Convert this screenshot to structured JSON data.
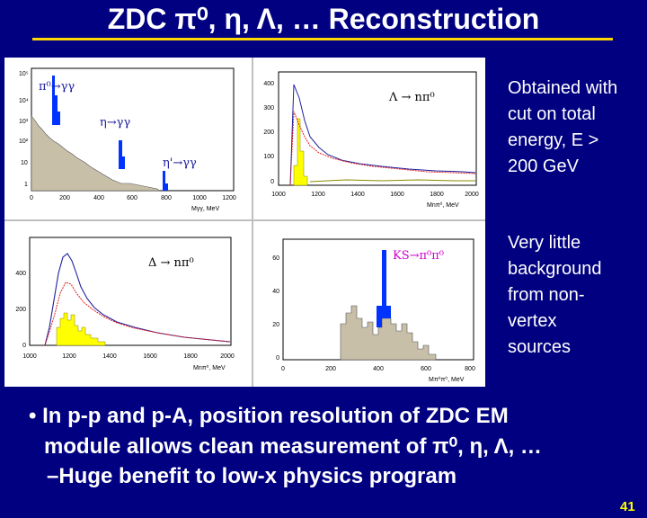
{
  "title": "ZDC π⁰, η, Λ, … Reconstruction",
  "page_number": "41",
  "side_notes": [
    [
      "Obtained with",
      "cut on total",
      "energy, E >",
      "200 GeV"
    ],
    [
      "Very little",
      "background",
      "from non-",
      "vertex",
      "sources"
    ]
  ],
  "bullet": {
    "marker": "•",
    "line1": "In p-p and p-A, position resolution of ZDC EM",
    "line2": "module allows clean measurement of π⁰, η, Λ, …"
  },
  "sub_bullet": "–Huge benefit to low-x physics program",
  "plots": {
    "gg": {
      "xlabel": "Mγγ, MeV",
      "xticks": [
        "0",
        "200",
        "400",
        "600",
        "800",
        "1000",
        "1200"
      ],
      "yticks": [
        "10⁵",
        "10⁴",
        "10³",
        "10²",
        "10",
        "1"
      ],
      "labels": [
        "π⁰→γγ",
        "η→γγ",
        "η'→γγ"
      ]
    },
    "lambda": {
      "xlabel": "Mnπ⁰, MeV",
      "xticks": [
        "1000",
        "1200",
        "1400",
        "1600",
        "1800",
        "2000"
      ],
      "yticks": [
        "400",
        "300",
        "200",
        "100",
        "0"
      ],
      "label": "Λ → nπ⁰"
    },
    "delta": {
      "xlabel": "Mnπ⁰, MeV",
      "xticks": [
        "1000",
        "1200",
        "1400",
        "1600",
        "1800",
        "2000"
      ],
      "yticks": [
        "400",
        "200",
        "0"
      ],
      "label": "Δ → nπ⁰"
    },
    "ks": {
      "xlabel": "Mπ⁰π⁰, MeV",
      "xticks": [
        "0",
        "200",
        "400",
        "600",
        "800"
      ],
      "yticks": [
        "60",
        "40",
        "20",
        "0"
      ],
      "label": "KS→π⁰π⁰"
    }
  },
  "colors": {
    "background": "#000080",
    "title_rule": "#ffd700",
    "page_number": "#ffff00",
    "histogram_fill": "#c8bfa8",
    "signal_blue": "#0033ff",
    "signal_yellow": "#ffff00",
    "curve_red": "#e02020",
    "curve_navy": "#2020a0",
    "label_magenta": "#cc00cc"
  }
}
